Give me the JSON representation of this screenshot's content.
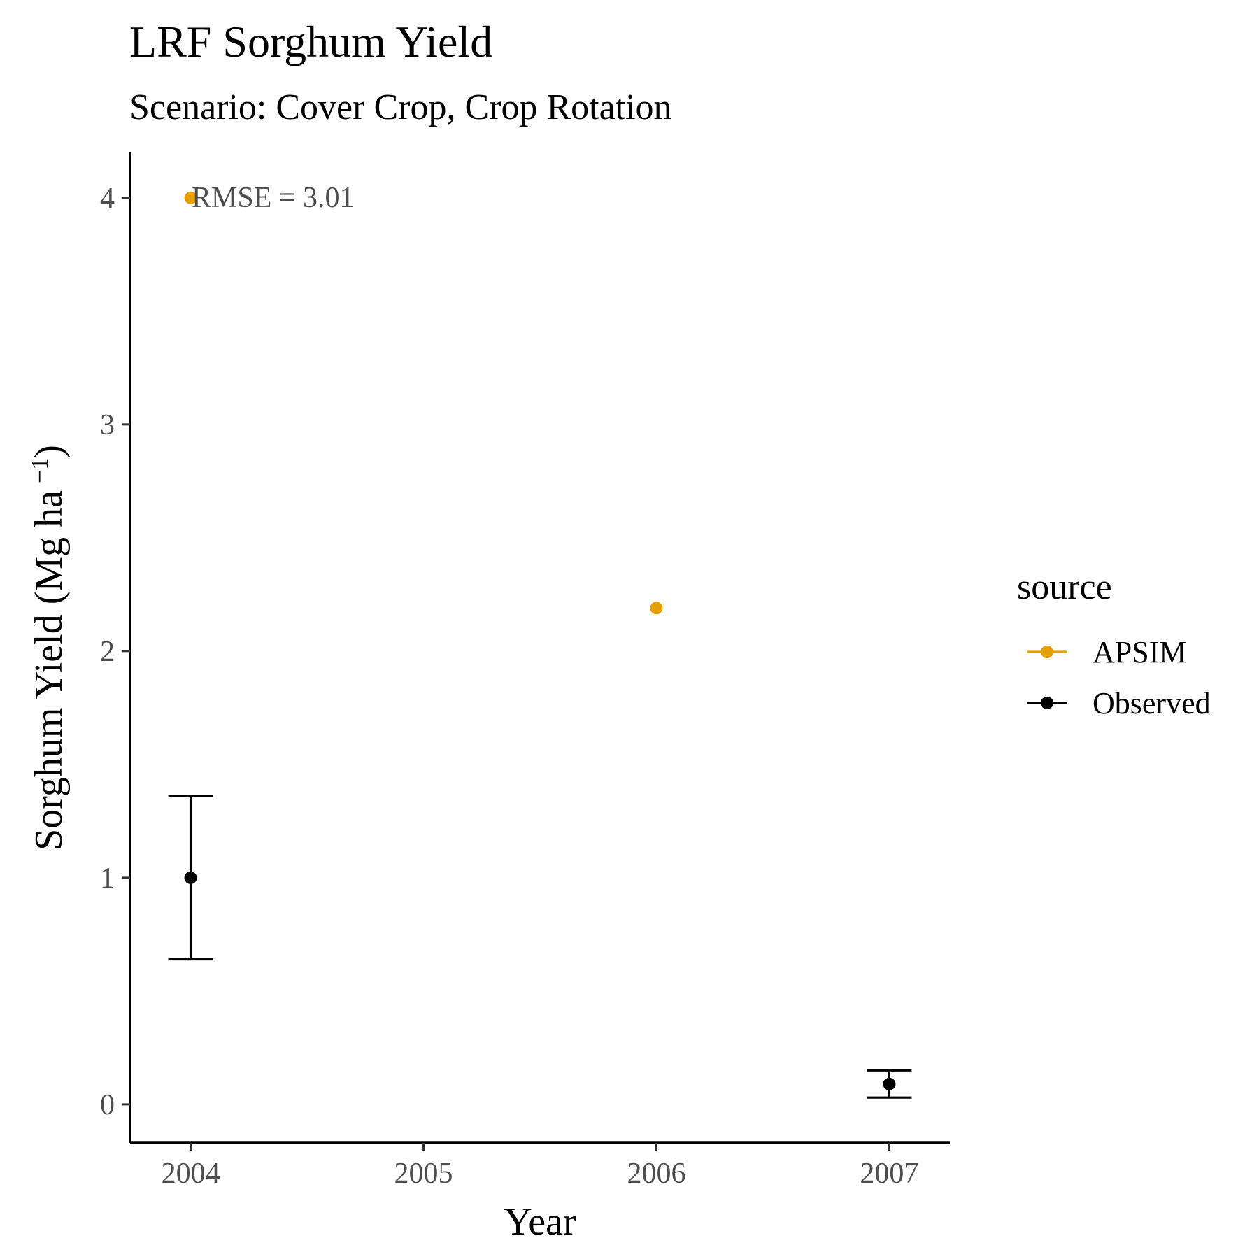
{
  "chart_data": {
    "type": "scatter",
    "title": "LRF Sorghum Yield",
    "subtitle": "Scenario: Cover Crop, Crop Rotation",
    "xlabel": "Year",
    "ylabel": "Sorghum Yield (Mg ha",
    "ylabel_sup": "−1",
    "ylabel_close": ")",
    "x_ticks": [
      2004,
      2005,
      2006,
      2007
    ],
    "y_ticks": [
      0,
      1,
      2,
      3,
      4
    ],
    "xlim": [
      2003.74,
      2007.26
    ],
    "ylim": [
      -0.17,
      4.2
    ],
    "grid": false,
    "legend": {
      "title": "source",
      "placement": "right"
    },
    "series": [
      {
        "name": "APSIM",
        "color": "#E69F00",
        "points": [
          {
            "x": 2004,
            "y": 4.0
          },
          {
            "x": 2006,
            "y": 2.19
          }
        ]
      },
      {
        "name": "Observed",
        "color": "#000000",
        "points": [
          {
            "x": 2004,
            "y": 1.0,
            "ymin": 0.64,
            "ymax": 1.36
          },
          {
            "x": 2007,
            "y": 0.09,
            "ymin": 0.03,
            "ymax": 0.15
          }
        ]
      }
    ],
    "annotation": {
      "text": "RMSE = 3.01",
      "x": 2004,
      "y": 4.0
    }
  }
}
